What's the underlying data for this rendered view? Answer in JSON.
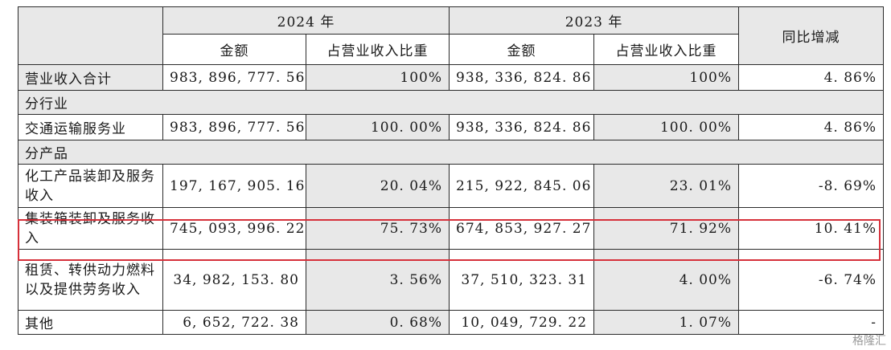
{
  "header": {
    "year_a": "2024 年",
    "year_b": "2023 年",
    "yoy": "同比增减",
    "amount": "金额",
    "share": "占营业收入比重"
  },
  "rows": [
    {
      "label": "营业收入合计",
      "a_amt": "983, 896, 777. 56",
      "a_pct": "100%",
      "b_amt": "938, 336, 824. 86",
      "b_pct": "100%",
      "yoy": "4. 86%"
    },
    {
      "section": "分行业"
    },
    {
      "label": "交通运输服务业",
      "a_amt": "983, 896, 777. 56",
      "a_pct": "100. 00%",
      "b_amt": "938, 336, 824. 86",
      "b_pct": "100. 00%",
      "yoy": "4. 86%"
    },
    {
      "section": "分产品"
    },
    {
      "label": "化工产品装卸及服务收入",
      "a_amt": "197, 167, 905. 16",
      "a_pct": "20. 04%",
      "b_amt": "215, 922, 845. 06",
      "b_pct": "23. 01%",
      "yoy": "-8. 69%"
    },
    {
      "label": "集装箱装卸及服务收入",
      "a_amt": "745, 093, 996. 22",
      "a_pct": "75. 73%",
      "b_amt": "674, 853, 927. 27",
      "b_pct": "71. 92%",
      "yoy": "10. 41%"
    },
    {
      "label": "租赁、转供动力燃料以及提供劳务收入",
      "a_amt": "34, 982, 153. 80",
      "a_pct": "3. 56%",
      "b_amt": "37, 510, 323. 31",
      "b_pct": "4. 00%",
      "yoy": "-6. 74%"
    },
    {
      "label": "其他",
      "a_amt": "6, 652, 722. 38",
      "a_pct": "0. 68%",
      "b_amt": "10, 049, 729. 22",
      "b_pct": "1. 07%",
      "yoy": "-"
    }
  ],
  "watermark": "格隆汇"
}
